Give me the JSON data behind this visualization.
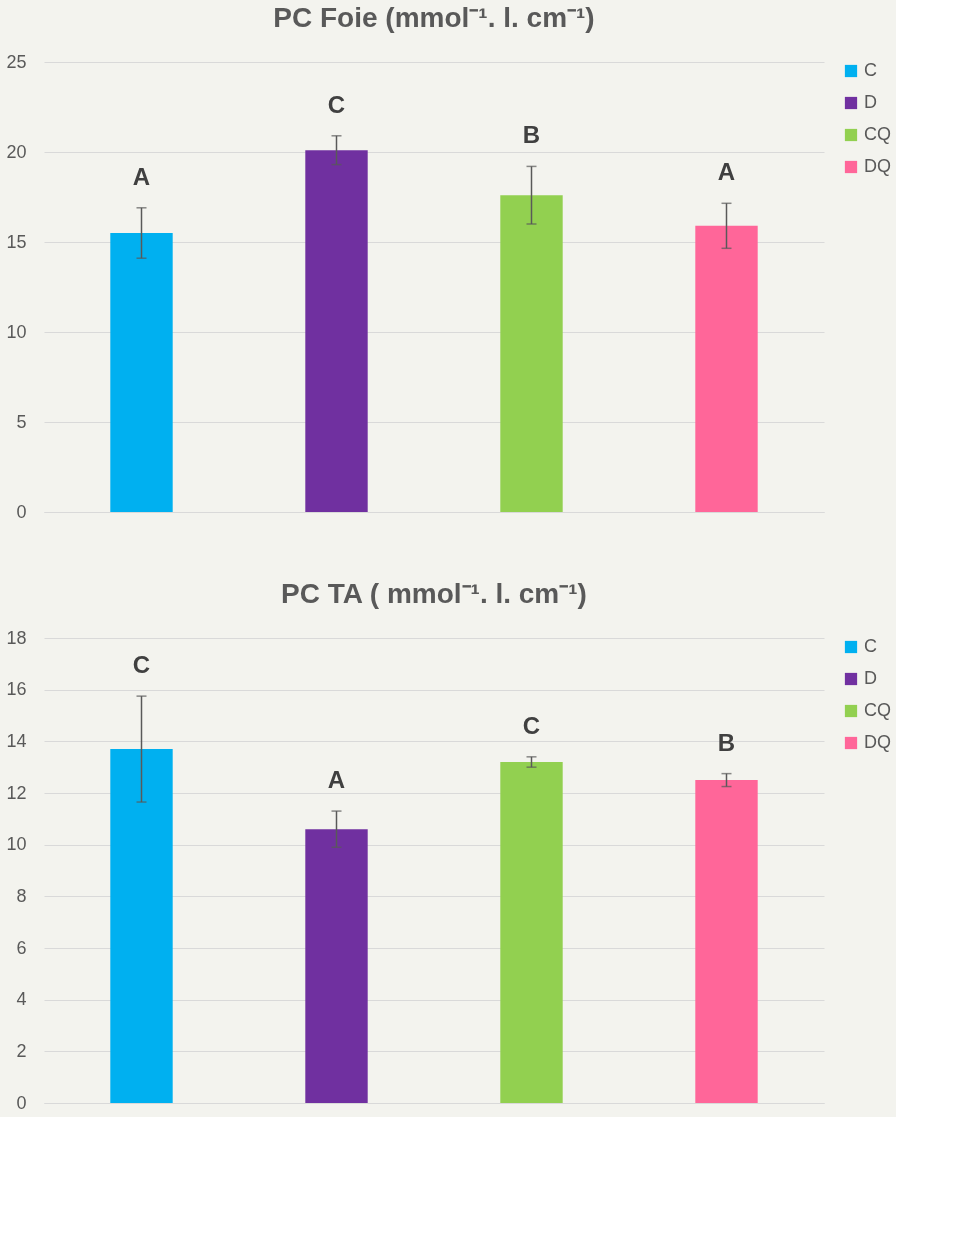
{
  "chart_data": [
    {
      "type": "bar",
      "title": "PC Foie (mmol⁻¹. l. cm⁻¹)",
      "categories": [
        null,
        null,
        null,
        null
      ],
      "series": [
        {
          "name": "C",
          "color": "#00b0f0",
          "values": [
            15.5,
            null,
            null,
            null
          ],
          "errors": [
            1.4,
            null,
            null,
            null
          ]
        },
        {
          "name": "D",
          "color": "#7030a0",
          "values": [
            null,
            20.1,
            null,
            null
          ],
          "errors": [
            null,
            0.8,
            null,
            null
          ]
        },
        {
          "name": "CQ",
          "color": "#92d050",
          "values": [
            null,
            null,
            17.6,
            null
          ],
          "errors": [
            null,
            null,
            1.6,
            null
          ]
        },
        {
          "name": "DQ",
          "color": "#ff6699",
          "values": [
            null,
            null,
            null,
            15.9
          ],
          "errors": [
            null,
            null,
            null,
            1.25
          ]
        }
      ],
      "annotations": [
        "A",
        "C",
        "B",
        "A"
      ],
      "ylim": [
        0,
        25
      ],
      "yticks": [
        0,
        5,
        10,
        15,
        20,
        25
      ],
      "grid": "y",
      "legend": "right",
      "tick_labels": "y"
    },
    {
      "type": "bar",
      "title": "PC TA ( mmol⁻¹. l. cm⁻¹)",
      "categories": [
        null,
        null,
        null,
        null
      ],
      "series": [
        {
          "name": "C",
          "color": "#00b0f0",
          "values": [
            13.7,
            null,
            null,
            null
          ],
          "errors": [
            2.05,
            null,
            null,
            null
          ]
        },
        {
          "name": "D",
          "color": "#7030a0",
          "values": [
            null,
            10.6,
            null,
            null
          ],
          "errors": [
            null,
            0.7,
            null,
            null
          ]
        },
        {
          "name": "CQ",
          "color": "#92d050",
          "values": [
            null,
            null,
            13.2,
            null
          ],
          "errors": [
            null,
            null,
            0.2,
            null
          ]
        },
        {
          "name": "DQ",
          "color": "#ff6699",
          "values": [
            null,
            null,
            null,
            12.5
          ],
          "errors": [
            null,
            null,
            null,
            0.25
          ]
        }
      ],
      "annotations": [
        "C",
        "A",
        "C",
        "B"
      ],
      "ylim": [
        0,
        18
      ],
      "yticks": [
        0,
        2,
        4,
        6,
        8,
        10,
        12,
        14,
        16,
        18
      ],
      "grid": "y",
      "legend": "right",
      "tick_labels": "y"
    }
  ]
}
